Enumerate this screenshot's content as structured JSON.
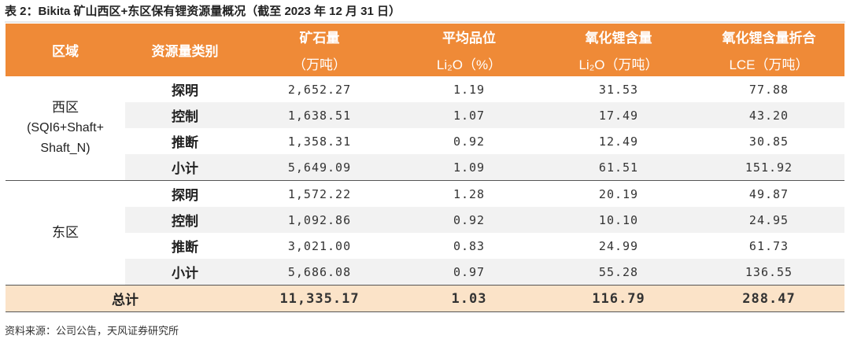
{
  "title": "表 2：Bikita 矿山西区+东区保有锂资源量概况（截至 2023 年 12 月 31 日）",
  "header": {
    "region": "区域",
    "category": "资源量类别",
    "ore": "矿石量",
    "ore_unit": "（万吨）",
    "grade": "平均品位",
    "grade_unit": "Li₂O（%）",
    "li2o": "氧化锂含量",
    "li2o_unit": "Li₂O（万吨）",
    "lce": "氧化锂含量折合",
    "lce_unit": "LCE（万吨）"
  },
  "west": {
    "name": "西区",
    "detail_line1": "(SQI6+Shaft+",
    "detail_line2": "Shaft_N)",
    "rows": [
      {
        "category": "探明",
        "ore": "2,652.27",
        "grade": "1.19",
        "li2o": "31.53",
        "lce": "77.88"
      },
      {
        "category": "控制",
        "ore": "1,638.51",
        "grade": "1.07",
        "li2o": "17.49",
        "lce": "43.20"
      },
      {
        "category": "推断",
        "ore": "1,358.31",
        "grade": "0.92",
        "li2o": "12.49",
        "lce": "30.85"
      },
      {
        "category": "小计",
        "ore": "5,649.09",
        "grade": "1.09",
        "li2o": "61.51",
        "lce": "151.92"
      }
    ]
  },
  "east": {
    "name": "东区",
    "rows": [
      {
        "category": "探明",
        "ore": "1,572.22",
        "grade": "1.28",
        "li2o": "20.19",
        "lce": "49.87"
      },
      {
        "category": "控制",
        "ore": "1,092.86",
        "grade": "0.92",
        "li2o": "10.10",
        "lce": "24.95"
      },
      {
        "category": "推断",
        "ore": "3,021.00",
        "grade": "0.83",
        "li2o": "24.99",
        "lce": "61.73"
      },
      {
        "category": "小计",
        "ore": "5,686.08",
        "grade": "0.97",
        "li2o": "55.28",
        "lce": "136.55"
      }
    ]
  },
  "total": {
    "label": "总计",
    "ore": "11,335.17",
    "grade": "1.03",
    "li2o": "116.79",
    "lce": "288.47"
  },
  "source": "资料来源：公司公告，天风证券研究所"
}
